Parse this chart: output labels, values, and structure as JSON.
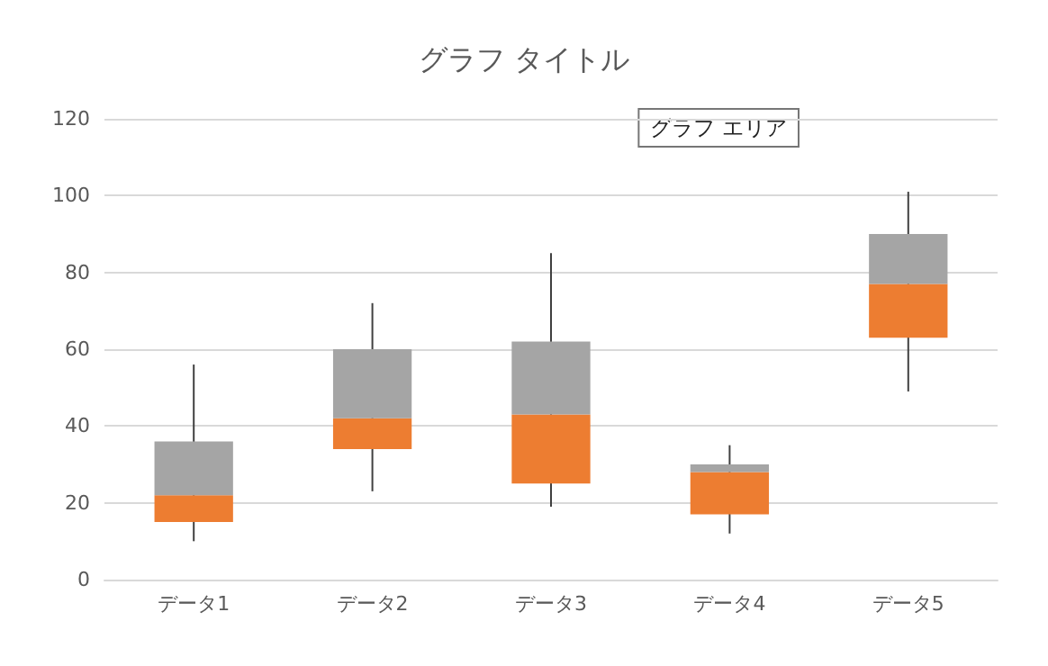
{
  "chart_data": {
    "type": "box",
    "title": "グラフ タイトル",
    "categories": [
      "データ1",
      "データ2",
      "データ3",
      "データ4",
      "データ5"
    ],
    "boxes": [
      {
        "low": 10,
        "q1": 15,
        "median": 22,
        "q3": 36,
        "high": 56
      },
      {
        "low": 23,
        "q1": 34,
        "median": 42,
        "q3": 60,
        "high": 72
      },
      {
        "low": 19,
        "q1": 25,
        "median": 43,
        "q3": 62,
        "high": 85
      },
      {
        "low": 12,
        "q1": 17,
        "median": 28,
        "q3": 30,
        "high": 35
      },
      {
        "low": 49,
        "q1": 63,
        "median": 77,
        "q3": 90,
        "high": 101
      }
    ],
    "colors": [
      [
        "#ed7d31",
        "#a5a5a5"
      ],
      [
        "#ed7d31",
        "#a5a5a5"
      ],
      [
        "#ed7d31",
        "#a5a5a5"
      ],
      [
        "#ed7d31",
        "#a5a5a5"
      ],
      [
        "#ed7d31",
        "#a5a5a5"
      ]
    ],
    "ylim": [
      0,
      120
    ],
    "yticks": [
      0,
      20,
      40,
      60,
      80,
      100,
      120
    ],
    "grid": "y",
    "annotations": [
      "グラフ エリア"
    ]
  }
}
